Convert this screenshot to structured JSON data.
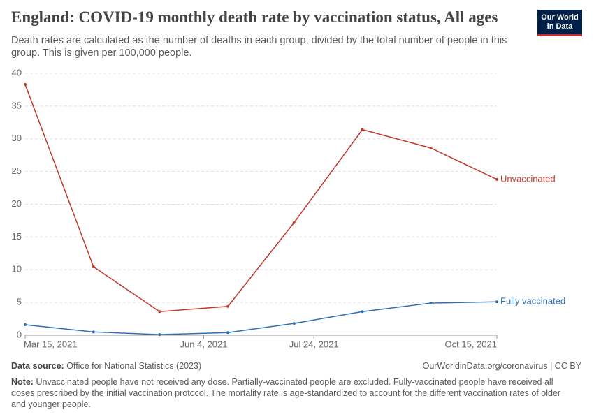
{
  "chart_data": {
    "type": "line",
    "title": "England: COVID-19 monthly death rate by vaccination status, All ages",
    "subtitle": "Death rates are calculated as the number of deaths in each group, divided by the total number of people in this group. This is given per 100,000 people.",
    "x": [
      "2021-03-15",
      "2021-04-15",
      "2021-05-15",
      "2021-06-15",
      "2021-07-15",
      "2021-08-15",
      "2021-09-15",
      "2021-10-15"
    ],
    "series": [
      {
        "name": "Unvaccinated",
        "color": "#c0392b",
        "values": [
          38.3,
          10.45,
          3.6,
          4.4,
          17.2,
          31.4,
          28.6,
          23.8
        ]
      },
      {
        "name": "Fully vaccinated",
        "color": "#2c6eb5",
        "values": [
          1.6,
          0.5,
          0.1,
          0.4,
          1.8,
          3.6,
          4.9,
          5.1
        ]
      }
    ],
    "xlim": [
      "2021-03-15",
      "2021-10-15"
    ],
    "xticks": [
      {
        "value": "2021-03-15",
        "label": "Mar 15, 2021"
      },
      {
        "value": "2021-06-04",
        "label": "Jun 4, 2021"
      },
      {
        "value": "2021-07-24",
        "label": "Jul 24, 2021"
      },
      {
        "value": "2021-10-15",
        "label": "Oct 15, 2021"
      }
    ],
    "ylim": [
      0,
      40
    ],
    "yticks": [
      0,
      5,
      10,
      15,
      20,
      25,
      30,
      35,
      40
    ],
    "grid": true
  },
  "logo": [
    "Our World",
    "in Data"
  ],
  "footer": {
    "source_label": "Data source:",
    "source": "Office for National Statistics (2023)",
    "url": "OurWorldinData.org/coronavirus | CC BY",
    "note_label": "Note:",
    "note": "Unvaccinated people have not received any dose. Partially-vaccinated people are excluded. Fully-vaccinated people have received all doses prescribed by the initial vaccination protocol. The mortality rate is age-standardized to account for the different vaccination rates of older and younger people."
  }
}
